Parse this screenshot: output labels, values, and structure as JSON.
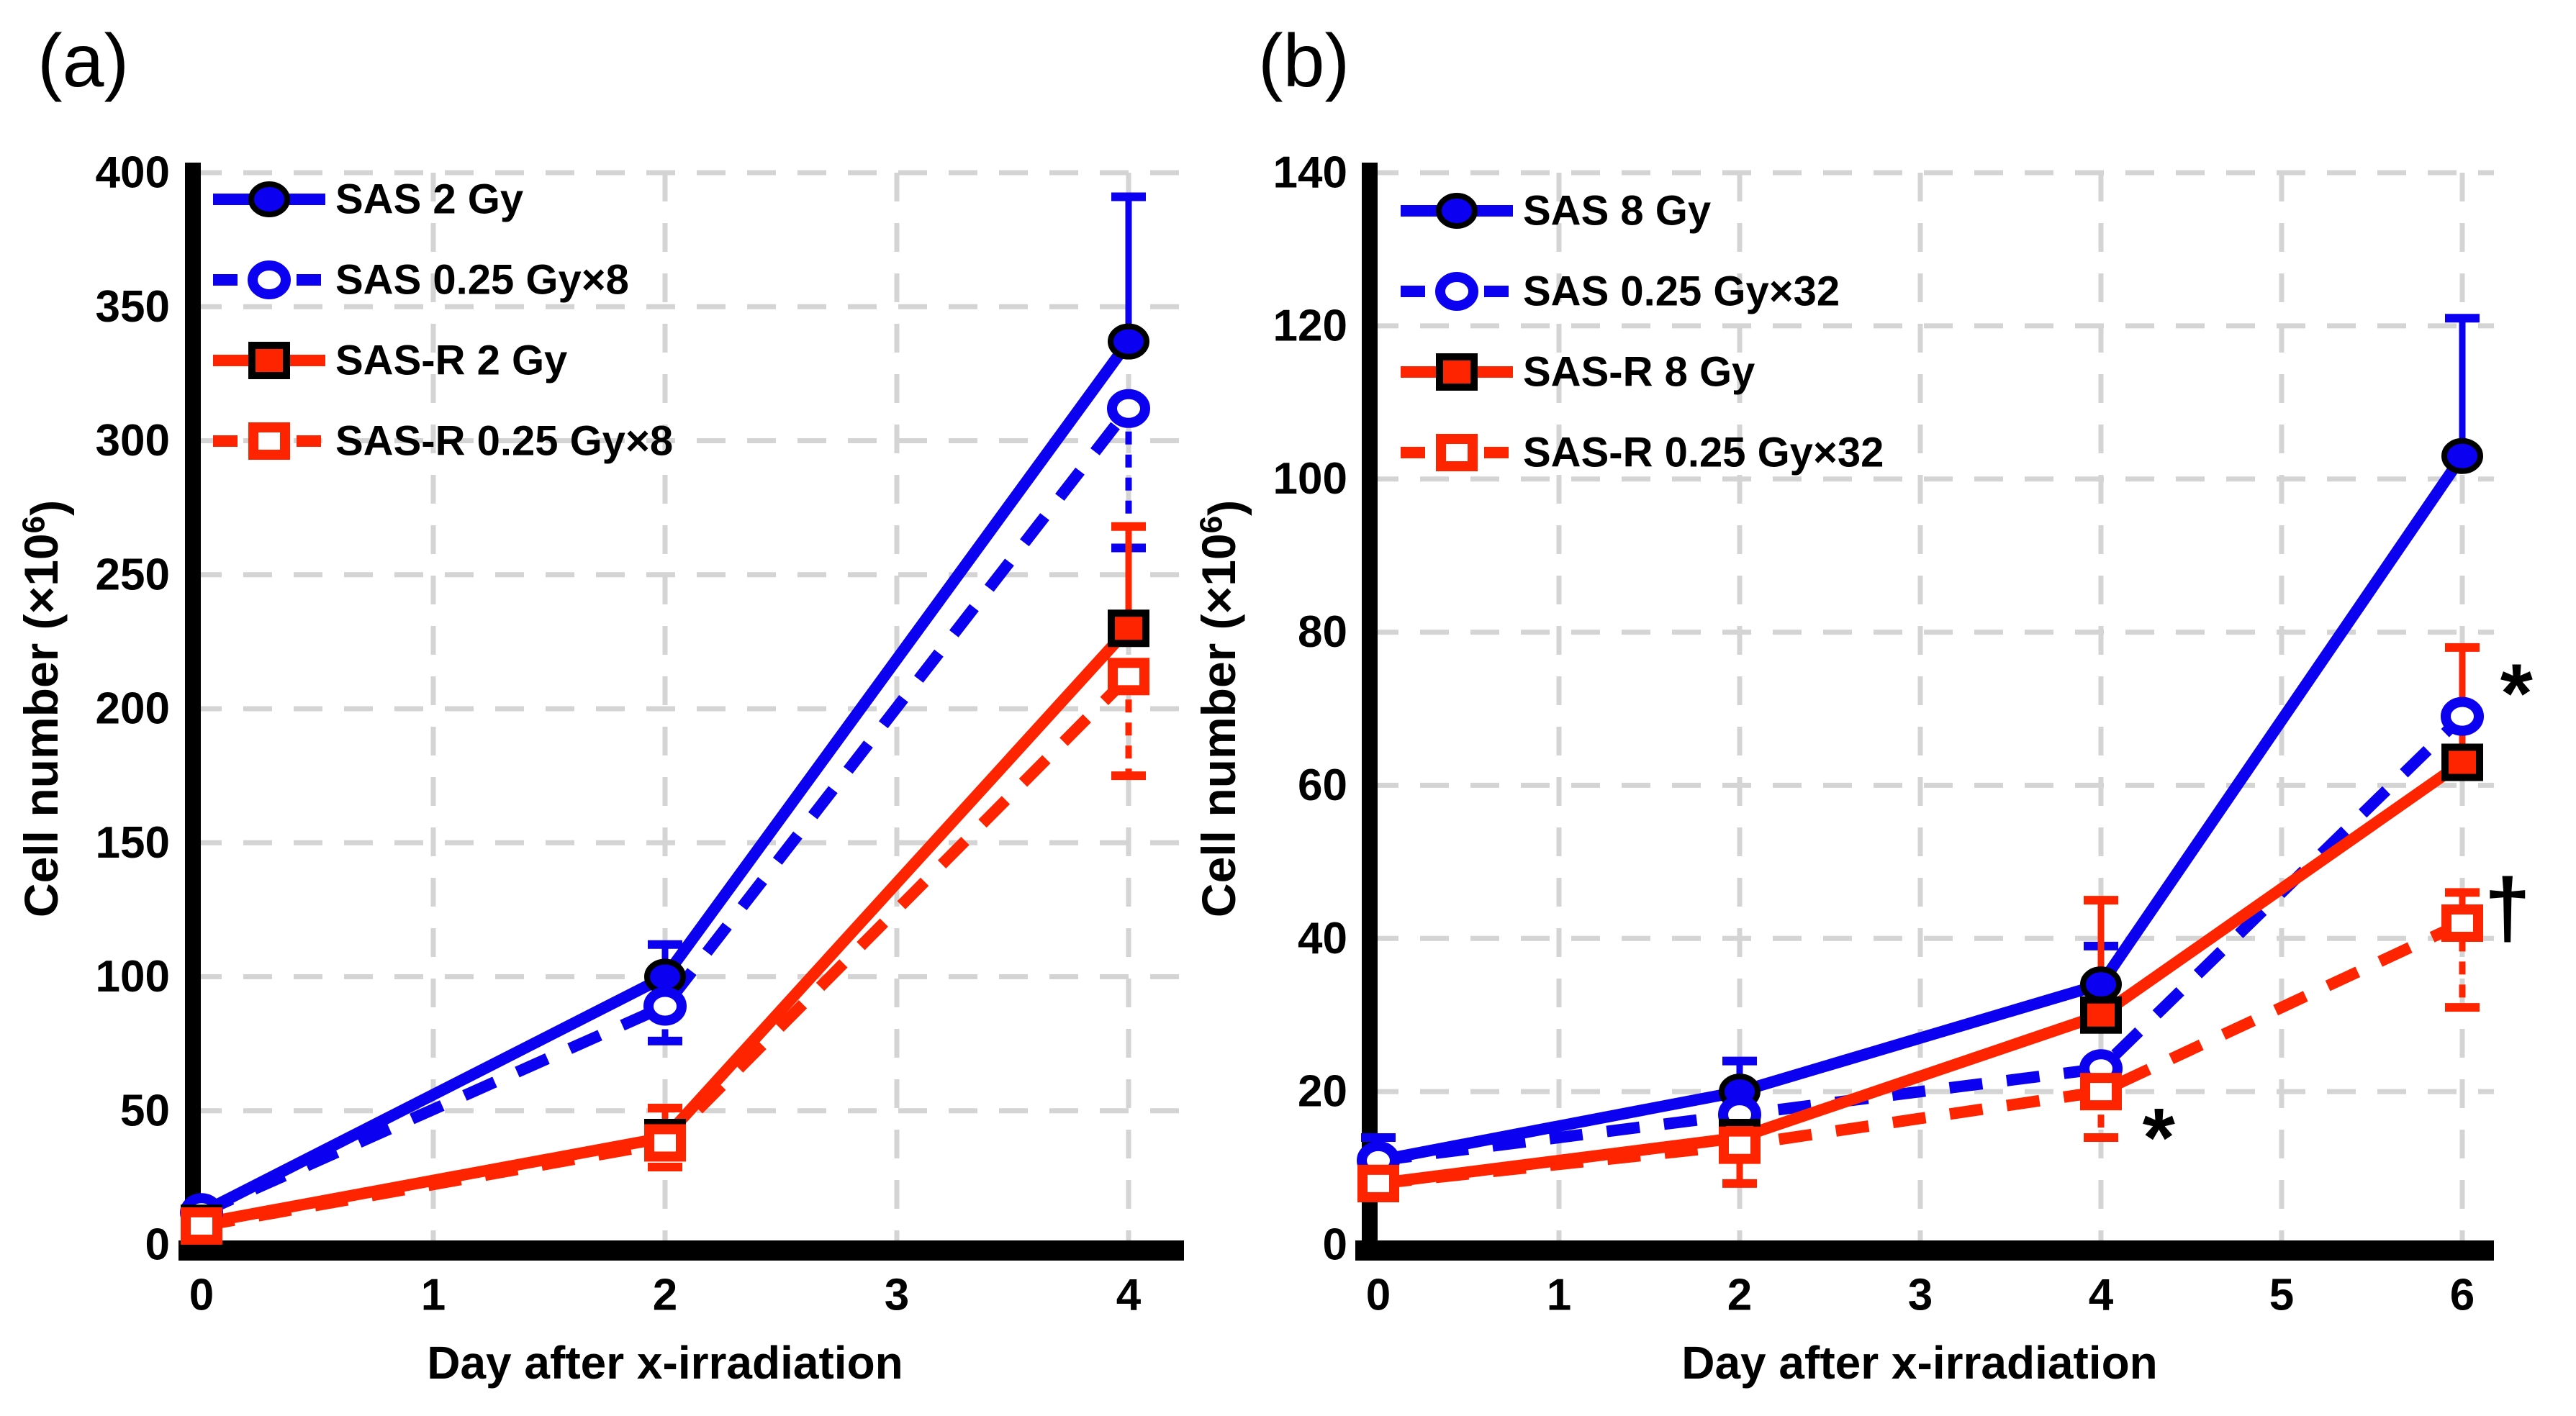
{
  "colors": {
    "blue": "#0b00f0",
    "red": "#ff2400",
    "grid": "#d4d4d4",
    "axis": "#000000",
    "background": "#ffffff"
  },
  "chart_data": [
    {
      "type": "line",
      "panel_label": "(a)",
      "x_label": "Day after x-irradiation",
      "y_label": "Cell number (×10⁶)",
      "x_ticks": [
        0,
        1,
        2,
        3,
        4
      ],
      "y_ticks": [
        0,
        50,
        100,
        150,
        200,
        250,
        300,
        350,
        400
      ],
      "x_max": 4,
      "y_max": 400,
      "grid": true,
      "legend_position": "top-left",
      "series": [
        {
          "name": "SAS 2 Gy",
          "color_key": "blue",
          "line": "solid",
          "marker": "circle",
          "marker_fill": "filled",
          "x": [
            0,
            2,
            4
          ],
          "values": [
            12,
            100,
            337
          ],
          "err_up": [
            0,
            12,
            54
          ],
          "err_down": [
            0,
            0,
            0
          ]
        },
        {
          "name": "SAS 0.25 Gy×8",
          "color_key": "blue",
          "line": "dashed",
          "marker": "circle",
          "marker_fill": "open",
          "x": [
            0,
            2,
            4
          ],
          "values": [
            12,
            89,
            312
          ],
          "err_up": [
            0,
            0,
            0
          ],
          "err_down": [
            0,
            13,
            52
          ]
        },
        {
          "name": "SAS-R 2 Gy",
          "color_key": "red",
          "line": "solid",
          "marker": "square",
          "marker_fill": "filled",
          "x": [
            0,
            2,
            4
          ],
          "values": [
            8,
            40,
            230
          ],
          "err_up": [
            0,
            11,
            38
          ],
          "err_down": [
            0,
            0,
            0
          ]
        },
        {
          "name": "SAS-R 0.25 Gy×8",
          "color_key": "red",
          "line": "dashed",
          "marker": "square",
          "marker_fill": "open",
          "x": [
            0,
            2,
            4
          ],
          "values": [
            7,
            38,
            212
          ],
          "err_up": [
            0,
            0,
            0
          ],
          "err_down": [
            0,
            9,
            37
          ]
        }
      ],
      "annotations": []
    },
    {
      "type": "line",
      "panel_label": "(b)",
      "x_label": "Day after x-irradiation",
      "y_label": "Cell number (×10⁶)",
      "x_ticks": [
        0,
        1,
        2,
        3,
        4,
        5,
        6
      ],
      "y_ticks": [
        0,
        20,
        40,
        60,
        80,
        100,
        120,
        140
      ],
      "x_max": 6,
      "y_max": 140,
      "grid": true,
      "legend_position": "top-left",
      "series": [
        {
          "name": "SAS 8 Gy",
          "color_key": "blue",
          "line": "solid",
          "marker": "circle",
          "marker_fill": "filled",
          "x": [
            0,
            2,
            4,
            6
          ],
          "values": [
            11,
            20,
            34,
            103
          ],
          "err_up": [
            3,
            4,
            5,
            18
          ],
          "err_down": [
            0,
            0,
            0,
            0
          ]
        },
        {
          "name": "SAS 0.25 Gy×32",
          "color_key": "blue",
          "line": "dashed",
          "marker": "circle",
          "marker_fill": "open",
          "x": [
            0,
            2,
            4,
            6
          ],
          "values": [
            11,
            17,
            23,
            69
          ],
          "err_up": [
            0,
            0,
            0,
            0
          ],
          "err_down": [
            0,
            0,
            0,
            0
          ]
        },
        {
          "name": "SAS-R 8 Gy",
          "color_key": "red",
          "line": "solid",
          "marker": "square",
          "marker_fill": "filled",
          "x": [
            0,
            2,
            4,
            6
          ],
          "values": [
            8,
            14,
            30,
            63
          ],
          "err_up": [
            0,
            0,
            15,
            15
          ],
          "err_down": [
            0,
            6,
            0,
            0
          ]
        },
        {
          "name": "SAS-R 0.25 Gy×32",
          "color_key": "red",
          "line": "dashed",
          "marker": "square",
          "marker_fill": "open",
          "x": [
            0,
            2,
            4,
            6
          ],
          "values": [
            8,
            13,
            20,
            42
          ],
          "err_up": [
            0,
            0,
            0,
            4
          ],
          "err_down": [
            0,
            0,
            6,
            11
          ]
        }
      ],
      "annotations": [
        {
          "text": "*",
          "day": 4.32,
          "value": 14
        },
        {
          "text": "*",
          "day": 6.3,
          "value": 72
        },
        {
          "text": "†",
          "day": 6.25,
          "value": 44
        }
      ]
    }
  ]
}
